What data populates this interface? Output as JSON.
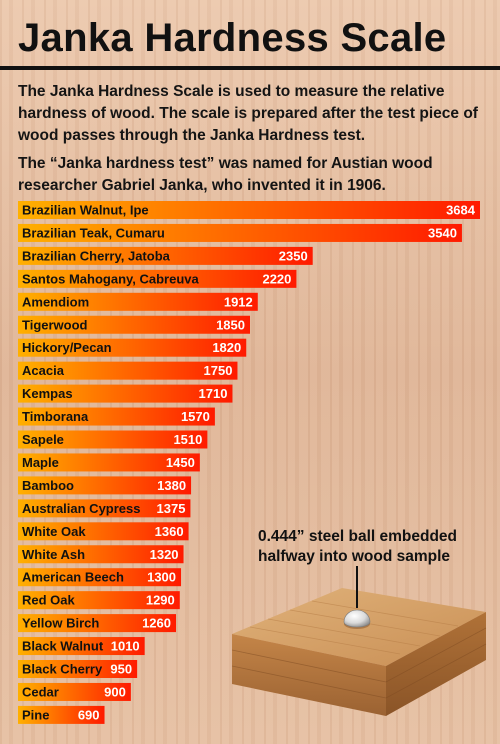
{
  "title": "Janka Hardness Scale",
  "description_1": "The Janka Hardness Scale is used to measure the relative hardness of wood. The scale is prepared after the test piece of wood passes through the Janka Hardness test.",
  "description_2": "The “Janka hardness test” was named for Austian wood researcher Gabriel Janka, who invented it in 1906.",
  "illustration_caption": "0.444” steel ball embedded halfway into wood sample",
  "colors": {
    "bar_start": "#ffb000",
    "bar_end": "#ff1a00",
    "text": "#111111"
  },
  "chart_data": {
    "type": "bar",
    "orientation": "horizontal",
    "title": "",
    "xlabel": "",
    "ylabel": "",
    "xlim": [
      0,
      3684
    ],
    "grid": false,
    "categories": [
      "Brazilian Walnut, Ipe",
      "Brazilian Teak, Cumaru",
      "Brazilian Cherry, Jatoba",
      "Santos Mahogany, Cabreuva",
      "Amendiom",
      "Tigerwood",
      "Hickory/Pecan",
      "Acacia",
      "Kempas",
      "Timborana",
      "Sapele",
      "Maple",
      "Bamboo",
      "Australian Cypress",
      "White Oak",
      "White Ash",
      "American Beech",
      "Red Oak",
      "Yellow Birch",
      "Black Walnut",
      "Black Cherry",
      "Cedar",
      "Pine"
    ],
    "values": [
      3684,
      3540,
      2350,
      2220,
      1912,
      1850,
      1820,
      1750,
      1710,
      1570,
      1510,
      1450,
      1380,
      1375,
      1360,
      1320,
      1300,
      1290,
      1260,
      1010,
      950,
      900,
      690
    ]
  }
}
